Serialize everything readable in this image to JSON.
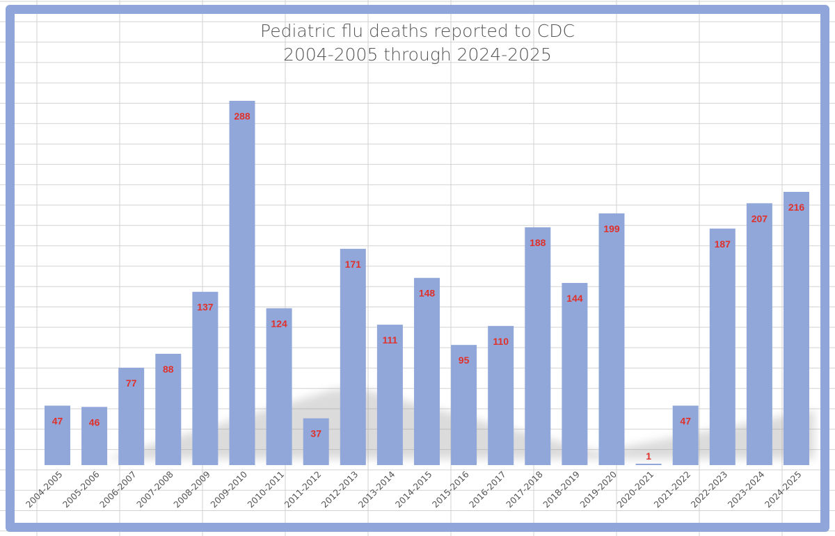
{
  "chart_data": {
    "type": "bar",
    "title": "Pediatric flu deaths reported to CDC",
    "subtitle": "2004-2005 through 2024-2025",
    "categories": [
      "2004-2005",
      "2005-2006",
      "2006-2007",
      "2007-2008",
      "2008-2009",
      "2009-2010",
      "2010-2011",
      "2011-2012",
      "2012-2013",
      "2013-2014",
      "2014-2015",
      "2015-2016",
      "2016-2017",
      "2017-2018",
      "2018-2019",
      "2019-2020",
      "2020-2021",
      "2021-2022",
      "2022-2023",
      "2023-2024",
      "2024-2025"
    ],
    "values": [
      47,
      46,
      77,
      88,
      137,
      288,
      124,
      37,
      171,
      111,
      148,
      95,
      110,
      188,
      144,
      199,
      1,
      47,
      187,
      207,
      216
    ],
    "xlabel": "",
    "ylabel": "",
    "ylim": [
      0,
      300
    ],
    "grid": false,
    "bar_color": "#91a7da",
    "label_color": "#e0302a",
    "frame_color": "#90a6da"
  }
}
